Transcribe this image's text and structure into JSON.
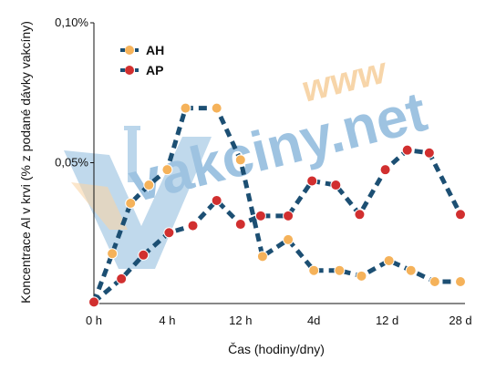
{
  "watermark": {
    "text": "vakciny.net",
    "www": "www",
    "colors": {
      "main": "#4f93c9",
      "www": "#f1b463"
    }
  },
  "chart_data": {
    "type": "line",
    "xlabel": "Čas (hodiny/dny)",
    "ylabel": "Koncentrace Al v krvi (% z podané dávky vakcíny)",
    "ylim": [
      0,
      0.1
    ],
    "yticks": [
      {
        "value": 0.1,
        "label": "0,10%"
      },
      {
        "value": 0.05,
        "label": "0,05%"
      }
    ],
    "xticks": [
      {
        "x": 0,
        "label": "0 h"
      },
      {
        "x": 4,
        "label": "4 h"
      },
      {
        "x": 8,
        "label": "12 h"
      },
      {
        "x": 12,
        "label": "4d"
      },
      {
        "x": 16,
        "label": "12 d"
      },
      {
        "x": 20,
        "label": "28 d"
      }
    ],
    "xlim": [
      0,
      20
    ],
    "grid": false,
    "legend_position": "top-left",
    "series": [
      {
        "name": "AH",
        "color": "#f5b25a",
        "line_color": "#1c4f73",
        "x": [
          0,
          1,
          2,
          3,
          4,
          5,
          6.7,
          8,
          9.2,
          10.6,
          12,
          13.4,
          14.6,
          16.1,
          17.3,
          18.6,
          20
        ],
        "y": [
          0.0002,
          0.0175,
          0.0355,
          0.042,
          0.0475,
          0.0695,
          0.0695,
          0.051,
          0.0165,
          0.0225,
          0.0115,
          0.0115,
          0.0095,
          0.015,
          0.0115,
          0.0075,
          0.0075
        ]
      },
      {
        "name": "AP",
        "color": "#d12f2f",
        "line_color": "#1c4f73",
        "x": [
          0,
          1.5,
          2.7,
          4.1,
          5.4,
          6.7,
          8,
          9.1,
          10.6,
          11.9,
          13.2,
          14.5,
          15.9,
          17.1,
          18.3,
          20
        ],
        "y": [
          0.0002,
          0.0085,
          0.017,
          0.025,
          0.0275,
          0.0365,
          0.028,
          0.031,
          0.031,
          0.0435,
          0.042,
          0.0315,
          0.0475,
          0.0545,
          0.0535,
          0.0315
        ]
      }
    ]
  }
}
